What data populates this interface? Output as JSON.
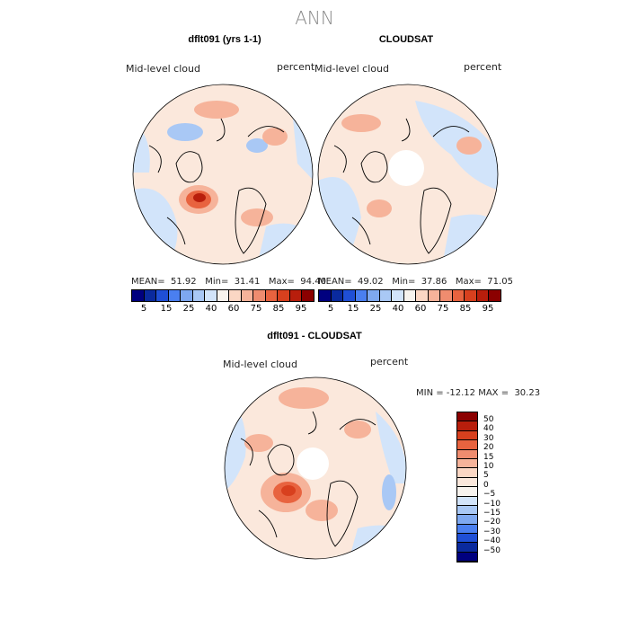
{
  "figure": {
    "title": "ANN"
  },
  "panels": {
    "left": {
      "title": "dflt091 (yrs 1-1)",
      "left_label": "Mid-level cloud",
      "right_label": "percent",
      "stats": {
        "mean_label": "MEAN=",
        "mean": "51.92",
        "min_label": "Min=",
        "min": "31.41",
        "max_label": "Max=",
        "max": "94.40"
      }
    },
    "right": {
      "title": "CLOUDSAT",
      "left_label": "Mid-level cloud",
      "right_label": "percent",
      "stats": {
        "mean_label": "MEAN=",
        "mean": "49.02",
        "min_label": "Min=",
        "min": "37.86",
        "max_label": "Max=",
        "max": "71.05"
      }
    },
    "diff": {
      "title": "dflt091 - CLOUDSAT",
      "left_label": "Mid-level cloud",
      "right_label": "percent",
      "minmax": "MIN = -12.12 MAX =  30.23"
    }
  },
  "colorbar_abs": {
    "ticks": [
      "5",
      "15",
      "25",
      "40",
      "60",
      "75",
      "85",
      "95"
    ],
    "colors": [
      "#00007f",
      "#0a2a9e",
      "#1f4fd6",
      "#4a7ff0",
      "#7ea8f0",
      "#a9c8f5",
      "#d2e4fa",
      "#f7f3ee",
      "#fbd7c4",
      "#f6b39a",
      "#ef8c6f",
      "#e8633f",
      "#d8401e",
      "#b81e0c",
      "#8b0000"
    ]
  },
  "colorbar_diff": {
    "labels": [
      "50",
      "40",
      "30",
      "20",
      "15",
      "10",
      "5",
      "0",
      "−5",
      "−10",
      "−15",
      "−20",
      "−30",
      "−40",
      "−50"
    ],
    "colors": [
      "#8b0000",
      "#b81e0c",
      "#d8401e",
      "#e8633f",
      "#ef8c6f",
      "#f6b39a",
      "#fbd7c4",
      "#fbe8dc",
      "#f7f3ee",
      "#d2e4fa",
      "#a9c8f5",
      "#7ea8f0",
      "#4a7ff0",
      "#1f4fd6",
      "#0a2a9e",
      "#00007f"
    ]
  }
}
